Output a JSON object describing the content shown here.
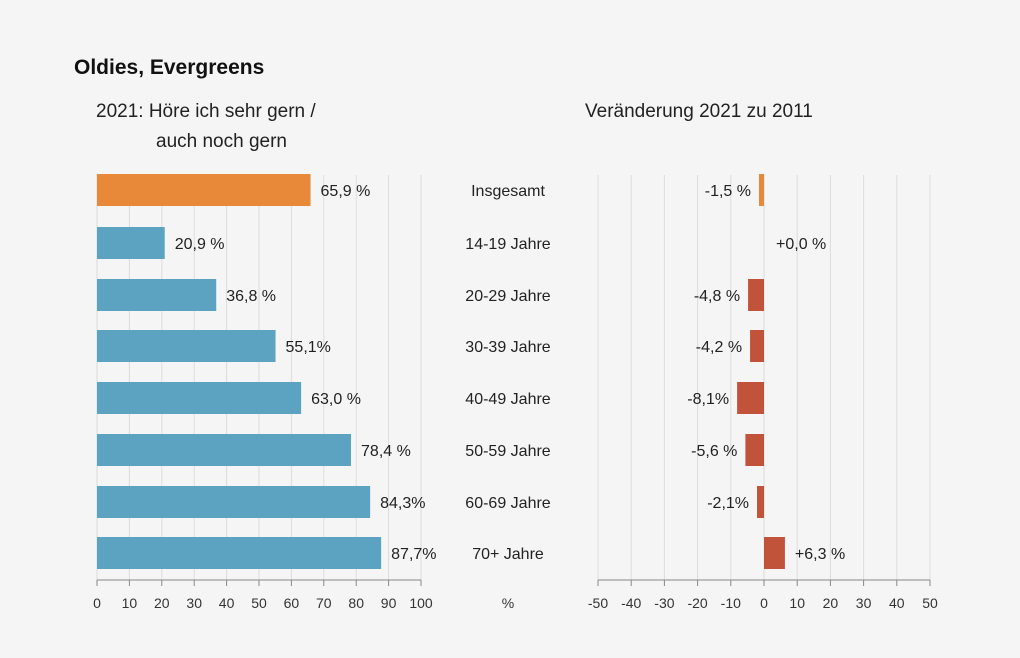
{
  "chart_data": [
    {
      "type": "bar",
      "orientation": "horizontal",
      "title": "Oldies, Evergreens",
      "subtitle": [
        "2021: Höre ich sehr gern /",
        "auch noch gern"
      ],
      "categories": [
        "Insgesamt",
        "14-19 Jahre",
        "20-29 Jahre",
        "30-39 Jahre",
        "40-49 Jahre",
        "50-59 Jahre",
        "60-69 Jahre",
        "70+ Jahre"
      ],
      "values": [
        65.9,
        20.9,
        36.8,
        55.1,
        63.0,
        78.4,
        84.3,
        87.7
      ],
      "labels": [
        "65,9 %",
        "20,9 %",
        "36,8 %",
        "55,1%",
        "63,0 %",
        "78,4 %",
        "84,3%",
        "87,7%"
      ],
      "xlim": [
        0,
        100
      ],
      "ticks": [
        "0",
        "10",
        "20",
        "30",
        "40",
        "50",
        "60",
        "70",
        "80",
        "90",
        "100"
      ],
      "xlabel": "%",
      "grid": true,
      "colors": {
        "highlight": "#E8893A",
        "bars": "#5BA3C0"
      }
    },
    {
      "type": "bar",
      "orientation": "horizontal",
      "subtitle": [
        "Veränderung 2021 zu 2011"
      ],
      "categories": [
        "Insgesamt",
        "14-19 Jahre",
        "20-29 Jahre",
        "30-39 Jahre",
        "40-49 Jahre",
        "50-59 Jahre",
        "60-69 Jahre",
        "70+ Jahre"
      ],
      "values": [
        -1.5,
        0.0,
        -4.8,
        -4.2,
        -8.1,
        -5.6,
        -2.1,
        6.3
      ],
      "labels": [
        "-1,5 %",
        "+0,0 %",
        "-4,8 %",
        "-4,2 %",
        "-8,1%",
        "-5,6 %",
        "-2,1%",
        "+6,3 %"
      ],
      "xlim": [
        -50,
        50
      ],
      "ticks": [
        "-50",
        "-40",
        "-30",
        "-20",
        "-10",
        "0",
        "10",
        "20",
        "30",
        "40",
        "50"
      ],
      "grid": true,
      "colors": {
        "highlight": "#E8893A",
        "bars": "#C0533A"
      }
    }
  ]
}
